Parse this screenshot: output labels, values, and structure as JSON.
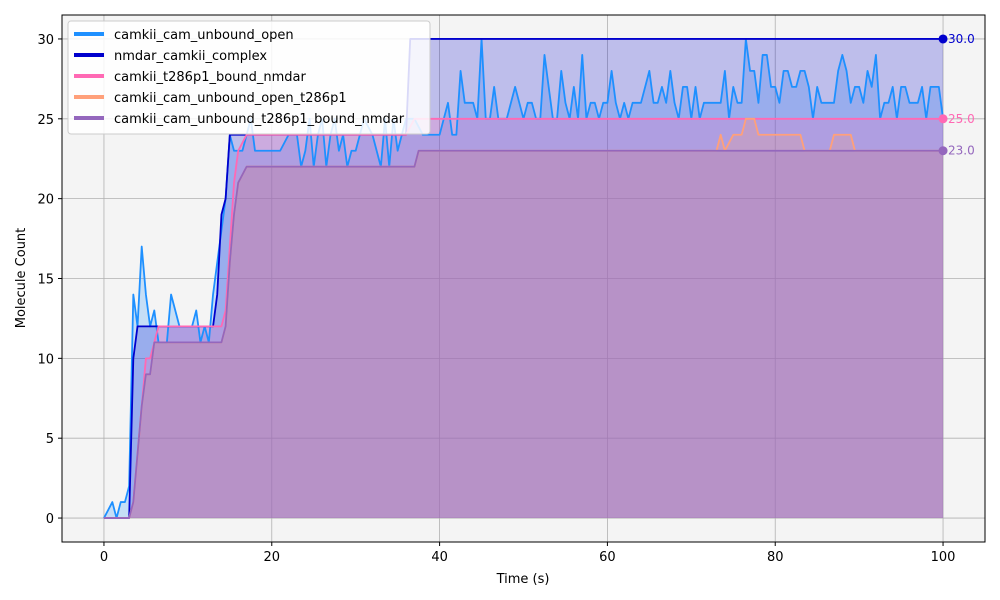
{
  "chart_data": {
    "type": "area",
    "xlabel": "Time (s)",
    "ylabel": "Molecule Count",
    "xlim": [
      -5,
      105
    ],
    "ylim": [
      -1.5,
      31.5
    ],
    "xticks": [
      0,
      20,
      40,
      60,
      80,
      100
    ],
    "yticks": [
      0,
      5,
      10,
      15,
      20,
      25,
      30
    ],
    "grid": true,
    "legend_position": "top-left",
    "series": [
      {
        "name": "camkii_cam_unbound_open",
        "color": "#1e90ff",
        "points": [
          [
            0,
            0
          ],
          [
            1,
            1
          ],
          [
            1.5,
            0
          ],
          [
            2,
            1
          ],
          [
            2.5,
            1
          ],
          [
            3,
            2
          ],
          [
            3.5,
            14
          ],
          [
            4,
            12
          ],
          [
            4.5,
            17
          ],
          [
            5,
            14
          ],
          [
            5.5,
            12
          ],
          [
            6,
            13
          ],
          [
            6.5,
            11
          ],
          [
            7.5,
            11
          ],
          [
            8,
            14
          ],
          [
            9,
            12
          ],
          [
            10,
            12
          ],
          [
            10.5,
            12
          ],
          [
            11,
            13
          ],
          [
            11.5,
            11
          ],
          [
            12,
            12
          ],
          [
            12.5,
            11
          ],
          [
            13,
            14
          ],
          [
            14,
            18
          ],
          [
            14.5,
            20
          ],
          [
            15,
            24
          ],
          [
            15.5,
            23
          ],
          [
            16,
            23
          ],
          [
            16.5,
            23
          ],
          [
            17,
            24
          ],
          [
            17.5,
            25
          ],
          [
            18,
            23
          ],
          [
            19,
            23
          ],
          [
            20,
            23
          ],
          [
            21,
            23
          ],
          [
            22,
            24
          ],
          [
            23,
            24
          ],
          [
            23.5,
            22
          ],
          [
            24,
            23
          ],
          [
            24.5,
            25
          ],
          [
            25,
            22
          ],
          [
            25.5,
            24
          ],
          [
            26,
            25
          ],
          [
            26.5,
            22
          ],
          [
            27,
            24
          ],
          [
            27.5,
            25
          ],
          [
            28,
            23
          ],
          [
            28.5,
            24
          ],
          [
            29,
            22
          ],
          [
            29.5,
            23
          ],
          [
            30,
            23
          ],
          [
            31,
            25
          ],
          [
            32,
            24
          ],
          [
            33,
            22
          ],
          [
            33.5,
            25
          ],
          [
            34,
            22
          ],
          [
            34.5,
            25
          ],
          [
            35,
            23
          ],
          [
            36,
            25
          ],
          [
            37,
            25
          ],
          [
            38,
            24
          ],
          [
            39,
            24
          ],
          [
            40,
            24
          ],
          [
            41,
            26
          ],
          [
            41.5,
            24
          ],
          [
            42,
            24
          ],
          [
            42.5,
            28
          ],
          [
            43,
            26
          ],
          [
            44,
            26
          ],
          [
            44.5,
            25
          ],
          [
            45,
            30
          ],
          [
            45.5,
            25
          ],
          [
            46,
            25
          ],
          [
            46.5,
            27
          ],
          [
            47,
            25
          ],
          [
            48,
            25
          ],
          [
            49,
            27
          ],
          [
            50,
            25
          ],
          [
            50.5,
            26
          ],
          [
            51,
            26
          ],
          [
            51.5,
            25
          ],
          [
            52,
            25
          ],
          [
            52.5,
            29
          ],
          [
            53,
            27
          ],
          [
            53.5,
            25
          ],
          [
            54,
            25
          ],
          [
            54.5,
            28
          ],
          [
            55,
            26
          ],
          [
            55.5,
            25
          ],
          [
            56,
            27
          ],
          [
            56.5,
            25
          ],
          [
            57,
            29
          ],
          [
            57.5,
            25
          ],
          [
            58,
            26
          ],
          [
            58.5,
            26
          ],
          [
            59,
            25
          ],
          [
            59.5,
            26
          ],
          [
            60,
            26
          ],
          [
            60.5,
            28
          ],
          [
            61,
            26
          ],
          [
            61.5,
            25
          ],
          [
            62,
            26
          ],
          [
            62.5,
            25
          ],
          [
            63,
            26
          ],
          [
            64,
            26
          ],
          [
            65,
            28
          ],
          [
            65.5,
            26
          ],
          [
            66,
            26
          ],
          [
            66.5,
            27
          ],
          [
            67,
            26
          ],
          [
            67.5,
            28
          ],
          [
            68,
            26
          ],
          [
            68.5,
            25
          ],
          [
            69,
            27
          ],
          [
            69.5,
            27
          ],
          [
            70,
            25
          ],
          [
            70.5,
            27
          ],
          [
            71,
            25
          ],
          [
            71.5,
            26
          ],
          [
            72,
            26
          ],
          [
            73,
            26
          ],
          [
            73.5,
            26
          ],
          [
            74,
            28
          ],
          [
            74.5,
            25
          ],
          [
            75,
            27
          ],
          [
            75.5,
            26
          ],
          [
            76,
            26
          ],
          [
            76.5,
            30
          ],
          [
            77,
            28
          ],
          [
            77.5,
            28
          ],
          [
            78,
            26
          ],
          [
            78.5,
            29
          ],
          [
            79,
            29
          ],
          [
            79.5,
            27
          ],
          [
            80,
            27
          ],
          [
            80.5,
            26
          ],
          [
            81,
            28
          ],
          [
            81.5,
            28
          ],
          [
            82,
            27
          ],
          [
            82.5,
            27
          ],
          [
            83,
            28
          ],
          [
            83.5,
            28
          ],
          [
            84,
            27
          ],
          [
            84.5,
            25
          ],
          [
            85,
            27
          ],
          [
            85.5,
            26
          ],
          [
            86,
            26
          ],
          [
            87,
            26
          ],
          [
            87.5,
            28
          ],
          [
            88,
            29
          ],
          [
            88.5,
            28
          ],
          [
            89,
            26
          ],
          [
            89.5,
            27
          ],
          [
            90,
            27
          ],
          [
            90.5,
            26
          ],
          [
            91,
            28
          ],
          [
            91.5,
            27
          ],
          [
            92,
            29
          ],
          [
            92.5,
            25
          ],
          [
            93,
            26
          ],
          [
            93.5,
            26
          ],
          [
            94,
            27
          ],
          [
            94.5,
            25
          ],
          [
            95,
            27
          ],
          [
            95.5,
            27
          ],
          [
            96,
            26
          ],
          [
            97,
            26
          ],
          [
            97.5,
            27
          ],
          [
            98,
            25
          ],
          [
            98.5,
            27
          ],
          [
            99,
            27
          ],
          [
            99.5,
            27
          ],
          [
            100,
            25
          ]
        ]
      },
      {
        "name": "nmdar_camkii_complex",
        "color": "#0000cd",
        "points": [
          [
            0,
            0
          ],
          [
            3,
            0
          ],
          [
            3.5,
            10
          ],
          [
            4,
            12
          ],
          [
            5,
            12
          ],
          [
            6,
            12
          ],
          [
            7,
            12
          ],
          [
            8,
            12
          ],
          [
            9,
            12
          ],
          [
            10,
            12
          ],
          [
            11,
            12
          ],
          [
            12,
            12
          ],
          [
            13,
            12
          ],
          [
            13.5,
            14
          ],
          [
            14,
            19
          ],
          [
            14.5,
            20
          ],
          [
            15,
            24
          ],
          [
            16,
            24
          ],
          [
            17,
            24
          ],
          [
            18,
            24
          ],
          [
            20,
            24
          ],
          [
            22,
            24
          ],
          [
            24,
            24
          ],
          [
            26,
            24
          ],
          [
            28,
            24
          ],
          [
            30,
            24
          ],
          [
            32,
            24
          ],
          [
            34,
            24
          ],
          [
            36,
            24
          ],
          [
            36.5,
            30
          ],
          [
            37,
            30
          ],
          [
            38,
            30
          ],
          [
            40,
            30
          ],
          [
            50,
            30
          ],
          [
            60,
            30
          ],
          [
            70,
            30
          ],
          [
            80,
            30
          ],
          [
            90,
            30
          ],
          [
            100,
            30
          ]
        ],
        "end_label": "30.0"
      },
      {
        "name": "camkii_t286p1_bound_nmdar",
        "color": "#ff69b4",
        "points": [
          [
            0,
            0
          ],
          [
            3,
            0
          ],
          [
            3.5,
            1
          ],
          [
            4,
            4
          ],
          [
            4.5,
            7
          ],
          [
            5,
            10
          ],
          [
            5.5,
            10
          ],
          [
            6,
            11
          ],
          [
            6.5,
            12
          ],
          [
            7,
            12
          ],
          [
            8,
            12
          ],
          [
            9,
            12
          ],
          [
            10,
            12
          ],
          [
            11,
            12
          ],
          [
            12,
            12
          ],
          [
            13,
            12
          ],
          [
            14,
            12
          ],
          [
            14.5,
            13
          ],
          [
            15,
            17
          ],
          [
            15.5,
            21
          ],
          [
            16,
            23
          ],
          [
            17,
            24
          ],
          [
            18,
            24
          ],
          [
            20,
            24
          ],
          [
            30,
            24
          ],
          [
            36,
            24
          ],
          [
            37,
            25
          ],
          [
            40,
            25
          ],
          [
            50,
            25
          ],
          [
            60,
            25
          ],
          [
            70,
            25
          ],
          [
            80,
            25
          ],
          [
            90,
            25
          ],
          [
            100,
            25
          ]
        ],
        "end_label": "25.0"
      },
      {
        "name": "camkii_cam_unbound_open_t286p1",
        "color": "#ffa07a",
        "points": [
          [
            0,
            0
          ],
          [
            3,
            0
          ],
          [
            3.5,
            1
          ],
          [
            4,
            4
          ],
          [
            4.5,
            7
          ],
          [
            5,
            9
          ],
          [
            5.5,
            9
          ],
          [
            6,
            11
          ],
          [
            7,
            11
          ],
          [
            8,
            11
          ],
          [
            9,
            11
          ],
          [
            10,
            11
          ],
          [
            11,
            11
          ],
          [
            12,
            11
          ],
          [
            13,
            11
          ],
          [
            14,
            11
          ],
          [
            14.5,
            12
          ],
          [
            15,
            16
          ],
          [
            15.5,
            19
          ],
          [
            16,
            21
          ],
          [
            17,
            22
          ],
          [
            18,
            22
          ],
          [
            20,
            22
          ],
          [
            30,
            22
          ],
          [
            37,
            22
          ],
          [
            37.5,
            23
          ],
          [
            40,
            23
          ],
          [
            50,
            23
          ],
          [
            60,
            23
          ],
          [
            70,
            23
          ],
          [
            73,
            23
          ],
          [
            73.5,
            24
          ],
          [
            74,
            23
          ],
          [
            75,
            24
          ],
          [
            76,
            24
          ],
          [
            76.5,
            25
          ],
          [
            77,
            25
          ],
          [
            77.5,
            25
          ],
          [
            78,
            24
          ],
          [
            79,
            24
          ],
          [
            80,
            24
          ],
          [
            81,
            24
          ],
          [
            82,
            24
          ],
          [
            83,
            24
          ],
          [
            83.5,
            23
          ],
          [
            86,
            23
          ],
          [
            86.5,
            23
          ],
          [
            87,
            24
          ],
          [
            88,
            24
          ],
          [
            89,
            24
          ],
          [
            89.5,
            23
          ],
          [
            90,
            23
          ],
          [
            95,
            23
          ],
          [
            100,
            23
          ]
        ]
      },
      {
        "name": "camkii_cam_unbound_t286p1_bound_nmdar",
        "color": "#9467bd",
        "points": [
          [
            0,
            0
          ],
          [
            3,
            0
          ],
          [
            3.5,
            1
          ],
          [
            4,
            4
          ],
          [
            4.5,
            7
          ],
          [
            5,
            9
          ],
          [
            5.5,
            9
          ],
          [
            6,
            11
          ],
          [
            7,
            11
          ],
          [
            8,
            11
          ],
          [
            9,
            11
          ],
          [
            10,
            11
          ],
          [
            11,
            11
          ],
          [
            12,
            11
          ],
          [
            13,
            11
          ],
          [
            14,
            11
          ],
          [
            14.5,
            12
          ],
          [
            15,
            16
          ],
          [
            15.5,
            19
          ],
          [
            16,
            21
          ],
          [
            17,
            22
          ],
          [
            18,
            22
          ],
          [
            20,
            22
          ],
          [
            30,
            22
          ],
          [
            37,
            22
          ],
          [
            37.5,
            23
          ],
          [
            40,
            23
          ],
          [
            50,
            23
          ],
          [
            60,
            23
          ],
          [
            70,
            23
          ],
          [
            80,
            23
          ],
          [
            90,
            23
          ],
          [
            100,
            23
          ]
        ],
        "end_label": "23.0"
      }
    ]
  }
}
